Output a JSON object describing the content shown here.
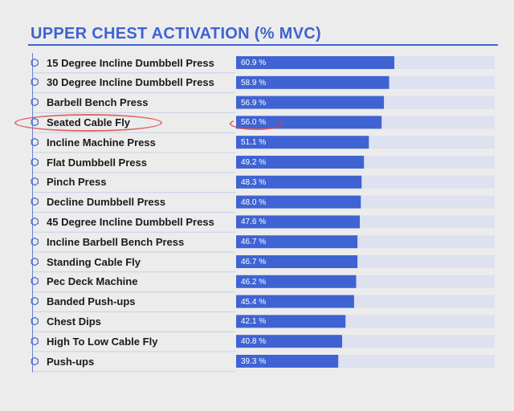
{
  "chart_data": {
    "type": "bar",
    "orientation": "horizontal",
    "title": "UPPER CHEST ACTIVATION (% MVC)",
    "xlim": [
      0,
      100
    ],
    "categories": [
      "15 Degree Incline Dumbbell Press",
      "30 Degree Incline Dumbbell Press",
      "Barbell Bench Press",
      "Seated Cable Fly",
      "Incline Machine Press",
      "Flat Dumbbell Press",
      "Pinch Press",
      "Decline Dumbbell Press",
      "45 Degree Incline Dumbbell Press",
      "Incline Barbell Bench Press",
      "Standing Cable Fly",
      "Pec Deck Machine",
      "Banded Push-ups",
      "Chest Dips",
      "High To Low Cable Fly",
      "Push-ups"
    ],
    "values": [
      60.9,
      58.9,
      56.9,
      56.0,
      51.1,
      49.2,
      48.3,
      48.0,
      47.6,
      46.7,
      46.7,
      46.2,
      45.4,
      42.1,
      40.8,
      39.3
    ],
    "value_labels": [
      "60.9 %",
      "58.9 %",
      "56.9 %",
      "56.0 %",
      "51.1 %",
      "49.2 %",
      "48.3 %",
      "48.0 %",
      "47.6 %",
      "46.7 %",
      "46.7 %",
      "46.2 %",
      "45.4 %",
      "42.1 %",
      "40.8 %",
      "39.3 %"
    ],
    "highlighted_category": "Seated Cable Fly"
  },
  "colors": {
    "bar": "#3f63d2",
    "track": "#dde1f0",
    "title": "#3f63d2",
    "marker": "#dc3c3c"
  }
}
